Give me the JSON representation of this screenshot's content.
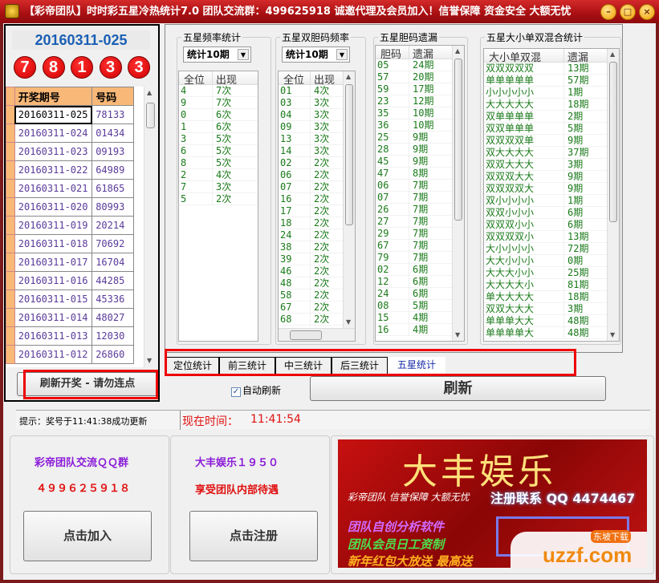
{
  "window": {
    "title": "【彩帝团队】时时彩五星冷热统计7.0 团队交流群：499625918  诚邀代理及会员加入！信誉保障 资金安全 大额无忧",
    "controls": [
      "–",
      "□",
      "×"
    ]
  },
  "latest": {
    "issue": "20160311-025",
    "balls": [
      "7",
      "8",
      "1",
      "3",
      "3"
    ]
  },
  "draw_table": {
    "headers": [
      "开奖期号",
      "号码"
    ],
    "rows": [
      [
        "20160311-025",
        "78133"
      ],
      [
        "20160311-024",
        "01434"
      ],
      [
        "20160311-023",
        "09193"
      ],
      [
        "20160311-022",
        "64989"
      ],
      [
        "20160311-021",
        "61865"
      ],
      [
        "20160311-020",
        "80993"
      ],
      [
        "20160311-019",
        "20214"
      ],
      [
        "20160311-018",
        "70692"
      ],
      [
        "20160311-017",
        "16704"
      ],
      [
        "20160311-016",
        "44285"
      ],
      [
        "20160311-015",
        "45336"
      ],
      [
        "20160311-014",
        "48027"
      ],
      [
        "20160311-013",
        "12030"
      ],
      [
        "20160311-012",
        "26860"
      ]
    ]
  },
  "refresh_draw_button": "刷新开奖 - 请勿连点",
  "freq": {
    "title": "五星频率统计",
    "select": "统计10期",
    "headers": [
      "全位",
      "出现"
    ],
    "rows": [
      [
        "4",
        "7次"
      ],
      [
        "9",
        "7次"
      ],
      [
        "0",
        "6次"
      ],
      [
        "1",
        "6次"
      ],
      [
        "3",
        "5次"
      ],
      [
        "6",
        "5次"
      ],
      [
        "8",
        "5次"
      ],
      [
        "2",
        "4次"
      ],
      [
        "7",
        "3次"
      ],
      [
        "5",
        "2次"
      ]
    ]
  },
  "pair_freq": {
    "title": "五星双胆码频率",
    "select": "统计10期",
    "headers": [
      "全位",
      "出现"
    ],
    "rows": [
      [
        "01",
        "4次"
      ],
      [
        "03",
        "3次"
      ],
      [
        "04",
        "3次"
      ],
      [
        "09",
        "3次"
      ],
      [
        "13",
        "3次"
      ],
      [
        "14",
        "3次"
      ],
      [
        "02",
        "2次"
      ],
      [
        "06",
        "2次"
      ],
      [
        "07",
        "2次"
      ],
      [
        "16",
        "2次"
      ],
      [
        "17",
        "2次"
      ],
      [
        "18",
        "2次"
      ],
      [
        "24",
        "2次"
      ],
      [
        "38",
        "2次"
      ],
      [
        "39",
        "2次"
      ],
      [
        "46",
        "2次"
      ],
      [
        "48",
        "2次"
      ],
      [
        "58",
        "2次"
      ],
      [
        "67",
        "2次"
      ],
      [
        "68",
        "2次"
      ]
    ]
  },
  "pair_miss": {
    "title": "五星胆码遗漏",
    "headers": [
      "胆码",
      "遗漏"
    ],
    "rows": [
      [
        "05",
        "24期"
      ],
      [
        "57",
        "20期"
      ],
      [
        "59",
        "17期"
      ],
      [
        "23",
        "12期"
      ],
      [
        "35",
        "10期"
      ],
      [
        "36",
        "10期"
      ],
      [
        "25",
        "9期"
      ],
      [
        "28",
        "9期"
      ],
      [
        "45",
        "9期"
      ],
      [
        "47",
        "8期"
      ],
      [
        "06",
        "7期"
      ],
      [
        "07",
        "7期"
      ],
      [
        "26",
        "7期"
      ],
      [
        "27",
        "7期"
      ],
      [
        "29",
        "7期"
      ],
      [
        "67",
        "7期"
      ],
      [
        "79",
        "7期"
      ],
      [
        "02",
        "6期"
      ],
      [
        "12",
        "6期"
      ],
      [
        "24",
        "6期"
      ],
      [
        "08",
        "5期"
      ],
      [
        "15",
        "4期"
      ],
      [
        "16",
        "4期"
      ]
    ]
  },
  "mix": {
    "title": "五星大小单双混合统计",
    "headers": [
      "大小单双混",
      "遗漏"
    ],
    "rows": [
      [
        "双双双双双",
        "13期"
      ],
      [
        "单单单单单",
        "57期"
      ],
      [
        "小小小小小",
        "1期"
      ],
      [
        "大大大大大",
        "18期"
      ],
      [
        "双单单单单",
        "2期"
      ],
      [
        "双双单单单",
        "5期"
      ],
      [
        "双双双双单",
        "9期"
      ],
      [
        "双大大大大",
        "37期"
      ],
      [
        "双双大大大",
        "3期"
      ],
      [
        "双双双大大",
        "9期"
      ],
      [
        "双双双双大",
        "9期"
      ],
      [
        "双小小小小",
        "1期"
      ],
      [
        "双双小小小",
        "6期"
      ],
      [
        "双双双小小",
        "6期"
      ],
      [
        "双双双双小",
        "13期"
      ],
      [
        "大小小小小",
        "72期"
      ],
      [
        "大大小小小",
        "0期"
      ],
      [
        "大大大小小",
        "25期"
      ],
      [
        "大大大大小",
        "81期"
      ],
      [
        "单大大大大",
        "18期"
      ],
      [
        "双双大大大",
        "3期"
      ],
      [
        "单单单大大",
        "48期"
      ],
      [
        "单单单单大",
        "48期"
      ]
    ]
  },
  "tabs": [
    {
      "label": "定位统计",
      "active": false
    },
    {
      "label": "前三统计",
      "active": false
    },
    {
      "label": "中三统计",
      "active": false
    },
    {
      "label": "后三统计",
      "active": false
    },
    {
      "label": "五星统计",
      "active": true
    }
  ],
  "auto_refresh": {
    "label": "自动刷新",
    "checked": true
  },
  "refresh_button": "刷新",
  "status": {
    "hint": "提示：奖号于11:41:38成功更新",
    "time_label": "现在时间：",
    "time": "11:41:54"
  },
  "promo1": {
    "line1": "彩帝团队交流ＱＱ群",
    "line2": "４９９６２５９１８",
    "button": "点击加入"
  },
  "promo2": {
    "line1": "大丰娱乐１９５０",
    "line2": "享受团队内部待遇",
    "button": "点击注册"
  },
  "banner": {
    "title": "大丰娱乐",
    "slogan": "彩帝团队  信誉保障  大额无忧",
    "contact": "注册联系 QQ 4474467",
    "lines": [
      "团队自创分析软件",
      "团队会员日工资制",
      "新年红包大放送  最高送"
    ],
    "watermark": "uzzf.com",
    "watermark_tag": "东坡下载"
  },
  "colors": {
    "title_bar": "#b5121b",
    "ball": "#e00000",
    "list_text": "#1a7a1a",
    "draw_text": "#5a3a9a",
    "highlight": "#e00000"
  }
}
